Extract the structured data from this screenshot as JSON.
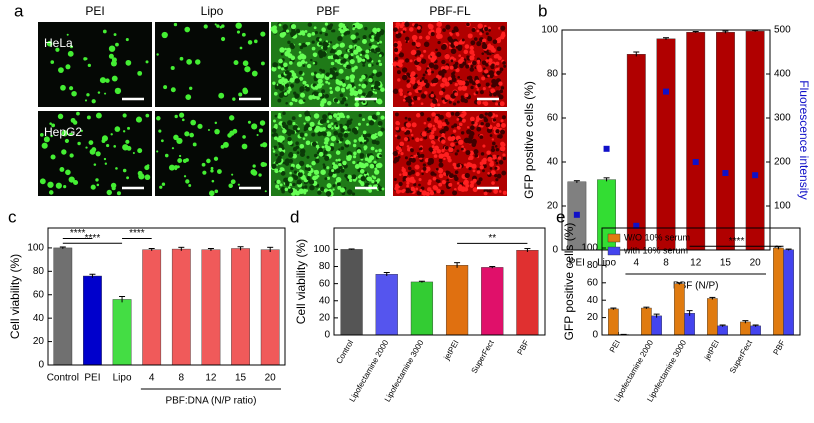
{
  "panel_a": {
    "label": "a",
    "columns": [
      "PEI",
      "Lipo",
      "PBF",
      "PBF-FL"
    ],
    "rows": [
      "HeLa",
      "HepG2"
    ]
  },
  "chart_data": [
    {
      "type": "bar",
      "label": "b",
      "ylabel": "GFP positive cells (%)",
      "y2label": "Fluorescence intensity",
      "categories": [
        "PEI",
        "Lipo",
        "4",
        "8",
        "12",
        "15",
        "20"
      ],
      "group_label": "PBF (N/P)",
      "ylim": [
        0,
        100
      ],
      "yticks": [
        0,
        20,
        40,
        60,
        80,
        100
      ],
      "y2lim": [
        0,
        500
      ],
      "y2ticks": [
        0,
        100,
        200,
        300,
        400,
        500
      ],
      "series": [
        {
          "values": [
            31,
            32,
            89,
            96,
            99,
            99,
            99.5
          ],
          "errors": [
            0.5,
            0.8,
            1,
            0.5,
            0.3,
            0.5,
            0.3
          ],
          "colors": [
            "#808080",
            "#33dd33",
            "#b00000",
            "#b00000",
            "#b00000",
            "#b00000",
            "#b00000"
          ]
        },
        {
          "type": "scatter",
          "axis": "y2",
          "color": "#1010c8",
          "values": [
            80,
            230,
            55,
            360,
            200,
            175,
            170
          ]
        }
      ]
    },
    {
      "type": "bar",
      "label": "c",
      "ylabel": "Cell viability (%)",
      "categories": [
        "Control",
        "PEI",
        "Lipo",
        "4",
        "8",
        "12",
        "15",
        "20"
      ],
      "group_label": "PBF:DNA (N/P ratio)",
      "ylim": [
        0,
        117
      ],
      "yticks": [
        0,
        20,
        40,
        60,
        80,
        100
      ],
      "series": [
        {
          "values": [
            100,
            76,
            56,
            98.5,
            99,
            98.5,
            99.5,
            98.5
          ],
          "errors": [
            0.8,
            1.5,
            2.5,
            1,
            1.5,
            1,
            1.5,
            2
          ],
          "colors": [
            "#707070",
            "#0000cc",
            "#44dd44",
            "#f05a5a",
            "#f05a5a",
            "#f05a5a",
            "#f05a5a",
            "#f05a5a"
          ]
        }
      ],
      "annotations": [
        "****",
        "****",
        "****"
      ]
    },
    {
      "type": "bar",
      "label": "d",
      "ylabel": "Cell viability (%)",
      "categories": [
        "Control",
        "Lipofectamine 2000",
        "Lipofectamine 3000",
        "jetPEI",
        "SuperFect",
        "PBF"
      ],
      "ylim": [
        0,
        125
      ],
      "yticks": [
        0,
        20,
        40,
        60,
        80,
        100
      ],
      "series": [
        {
          "values": [
            100,
            71,
            62,
            81.5,
            79,
            99
          ],
          "errors": [
            0.5,
            2,
            0.8,
            3,
            1,
            2
          ],
          "colors": [
            "#555555",
            "#5555ee",
            "#33cc33",
            "#e07010",
            "#e0106a",
            "#e03030"
          ]
        }
      ],
      "annotations": [
        "**"
      ]
    },
    {
      "type": "bar",
      "label": "e",
      "ylabel": "GFP positive cells (%)",
      "categories": [
        "PEI",
        "Lipofectamine 2000",
        "Lipofectamine 3000",
        "jetPEI",
        "SuperFect",
        "PBF"
      ],
      "ylim": [
        0,
        123
      ],
      "yticks": [
        0,
        20,
        40,
        60,
        80,
        100
      ],
      "legend": "upper left",
      "series": [
        {
          "name": "W/O 10% serum",
          "color": "#e07b10",
          "values": [
            30,
            31,
            59,
            42,
            15,
            100
          ],
          "errors": [
            1,
            1,
            1,
            1.2,
            1.5,
            1.5
          ]
        },
        {
          "name": "with 10% serum",
          "color": "#4444ee",
          "values": [
            0.5,
            22,
            25,
            10.5,
            10.5,
            98
          ],
          "errors": [
            0.2,
            2,
            3,
            1,
            1,
            0.8
          ]
        }
      ],
      "annotations": [
        "****"
      ]
    }
  ]
}
